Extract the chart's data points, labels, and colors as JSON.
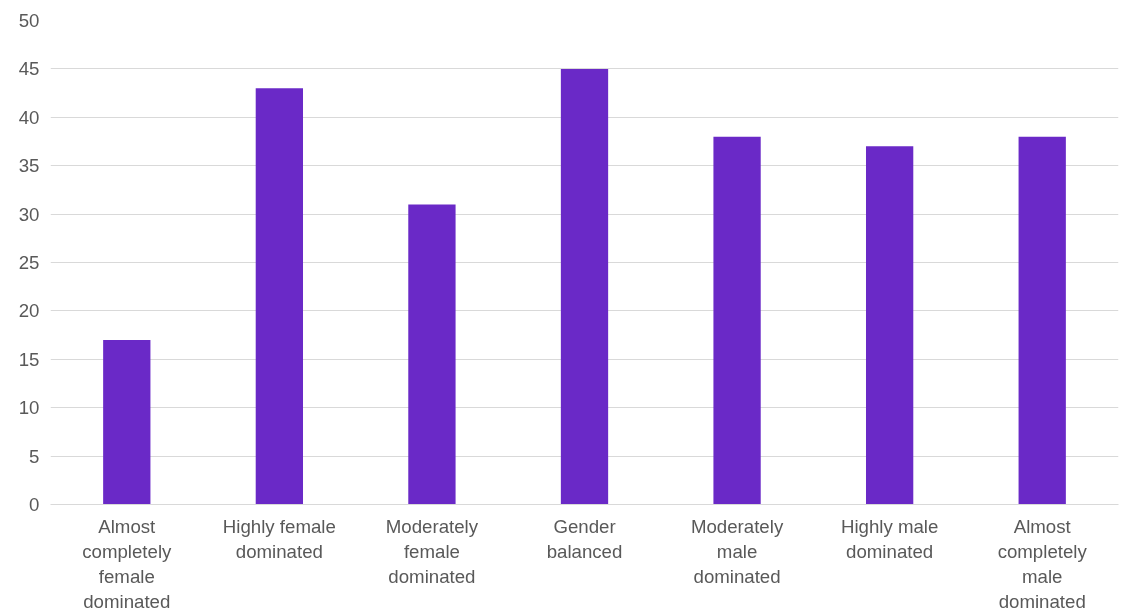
{
  "chart_data": {
    "type": "bar",
    "categories": [
      "Almost completely female dominated",
      "Highly female dominated",
      "Moderately female dominated",
      "Gender balanced",
      "Moderately male dominated",
      "Highly male dominated",
      "Almost completely male dominated"
    ],
    "values": [
      17,
      43,
      31,
      45,
      38,
      37,
      38
    ],
    "color": "#6a29c7",
    "ylim": [
      0,
      50
    ],
    "yticks": [
      0,
      5,
      10,
      15,
      20,
      25,
      30,
      35,
      40,
      45,
      50
    ],
    "grid": "y"
  }
}
